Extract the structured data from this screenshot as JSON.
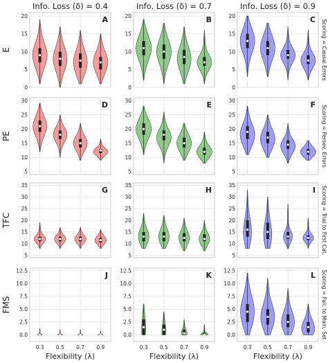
{
  "chart_data": {
    "type": "violin",
    "column_titles": [
      "Info. Loss (δ) = 0.4",
      "Info. Loss (δ) = 0.7",
      "Info. Loss (δ) = 0.9"
    ],
    "row_labels": [
      "E",
      "PE",
      "TFC",
      "FMS"
    ],
    "row_side_titles": [
      "Scoring = Causal Errors",
      "Scoring = Persev. Errors",
      "Scoring = Trial to First Cat.",
      "Scoring = Fail. to Main. Set"
    ],
    "xlabel": "Flexibility (λ)",
    "x_categories": [
      "0.3",
      "0.5",
      "0.7",
      "0.9"
    ],
    "colors": [
      "#f08c8c",
      "#7fbf7b",
      "#8c8cf0"
    ],
    "panel_letters": [
      [
        "A",
        "B",
        "C"
      ],
      [
        "D",
        "E",
        "F"
      ],
      [
        "G",
        "H",
        "I"
      ],
      [
        "J",
        "K",
        "L"
      ]
    ],
    "y_axes": [
      {
        "ylim": [
          0,
          21
        ],
        "ticks": [
          "0",
          "5",
          "10",
          "15",
          "20"
        ]
      },
      {
        "ylim": [
          4,
          31
        ],
        "ticks": [
          "5",
          "10",
          "15",
          "20",
          "25",
          "30"
        ]
      },
      {
        "ylim": [
          4,
          36
        ],
        "ticks": [
          "5",
          "10",
          "15",
          "20",
          "25",
          "30",
          "35"
        ]
      },
      {
        "ylim": [
          -1.3,
          13
        ],
        "ticks": [
          "0.0",
          "2.5",
          "5.0",
          "7.5",
          "10.0",
          "12.5"
        ]
      }
    ],
    "panels": [
      [
        [
          {
            "min": 1,
            "q1": 7,
            "median": 9,
            "q3": 11,
            "max": 19,
            "mode": 9,
            "width": 0.36
          },
          {
            "min": 0,
            "q1": 6,
            "median": 8,
            "q3": 10,
            "max": 17,
            "mode": 8,
            "width": 0.34
          },
          {
            "min": 1,
            "q1": 5.5,
            "median": 7.5,
            "q3": 9.5,
            "max": 16,
            "mode": 7,
            "width": 0.34
          },
          {
            "min": 1,
            "q1": 5,
            "median": 7,
            "q3": 8.5,
            "max": 15,
            "mode": 7,
            "width": 0.36
          }
        ],
        [
          {
            "min": 2,
            "q1": 9,
            "median": 11,
            "q3": 13,
            "max": 19,
            "mode": 11,
            "width": 0.38
          },
          {
            "min": 1,
            "q1": 8,
            "median": 10,
            "q3": 12,
            "max": 18,
            "mode": 10,
            "width": 0.36
          },
          {
            "min": 1,
            "q1": 6.5,
            "median": 8.5,
            "q3": 10.5,
            "max": 17,
            "mode": 8,
            "width": 0.34
          },
          {
            "min": 1,
            "q1": 6,
            "median": 7,
            "q3": 8.5,
            "max": 16,
            "mode": 7,
            "width": 0.36
          }
        ],
        [
          {
            "min": 3,
            "q1": 11,
            "median": 13,
            "q3": 15,
            "max": 20,
            "mode": 13,
            "width": 0.36
          },
          {
            "min": 3,
            "q1": 9,
            "median": 11,
            "q3": 13,
            "max": 18,
            "mode": 11,
            "width": 0.36
          },
          {
            "min": 2,
            "q1": 8,
            "median": 9,
            "q3": 10.5,
            "max": 17,
            "mode": 9,
            "width": 0.36
          },
          {
            "min": 2,
            "q1": 6.5,
            "median": 7.5,
            "q3": 9,
            "max": 16,
            "mode": 7.5,
            "width": 0.36
          }
        ]
      ],
      [
        [
          {
            "min": 12,
            "q1": 19,
            "median": 21,
            "q3": 23,
            "max": 29,
            "mode": 21,
            "width": 0.34
          },
          {
            "min": 10,
            "q1": 16.5,
            "median": 18,
            "q3": 19.5,
            "max": 25,
            "mode": 18,
            "width": 0.34
          },
          {
            "min": 9,
            "q1": 13.5,
            "median": 15,
            "q3": 16.5,
            "max": 22,
            "mode": 15,
            "width": 0.34
          },
          {
            "min": 9,
            "q1": 11.5,
            "median": 12.5,
            "q3": 13,
            "max": 16.5,
            "mode": 12,
            "width": 0.36
          }
        ],
        [
          {
            "min": 11,
            "q1": 18,
            "median": 20,
            "q3": 22,
            "max": 28,
            "mode": 20,
            "width": 0.38
          },
          {
            "min": 8,
            "q1": 16,
            "median": 18,
            "q3": 19.5,
            "max": 26,
            "mode": 17,
            "width": 0.36
          },
          {
            "min": 9,
            "q1": 13.5,
            "median": 15,
            "q3": 17,
            "max": 22,
            "mode": 15,
            "width": 0.36
          },
          {
            "min": 8,
            "q1": 11,
            "median": 12,
            "q3": 13.5,
            "max": 19,
            "mode": 12,
            "width": 0.38
          }
        ],
        [
          {
            "min": 11,
            "q1": 16.5,
            "median": 19,
            "q3": 21,
            "max": 28,
            "mode": 18,
            "width": 0.36
          },
          {
            "min": 10,
            "q1": 15,
            "median": 17,
            "q3": 19,
            "max": 25,
            "mode": 16.5,
            "width": 0.36
          },
          {
            "min": 8,
            "q1": 13,
            "median": 14.5,
            "q3": 16,
            "max": 22,
            "mode": 14,
            "width": 0.36
          },
          {
            "min": 9,
            "q1": 11,
            "median": 12,
            "q3": 13,
            "max": 16,
            "mode": 12,
            "width": 0.38
          }
        ]
      ],
      [
        [
          {
            "min": 8,
            "q1": 11,
            "median": 12,
            "q3": 13,
            "max": 19,
            "mode": 12,
            "width": 0.28
          },
          {
            "min": 8,
            "q1": 11,
            "median": 12,
            "q3": 13,
            "max": 17,
            "mode": 12,
            "width": 0.28
          },
          {
            "min": 8,
            "q1": 11,
            "median": 12,
            "q3": 13,
            "max": 17,
            "mode": 12,
            "width": 0.28
          },
          {
            "min": 8,
            "q1": 10.5,
            "median": 11.5,
            "q3": 12.5,
            "max": 16,
            "mode": 11.5,
            "width": 0.28
          }
        ],
        [
          {
            "min": 8,
            "q1": 11,
            "median": 13,
            "q3": 15,
            "max": 23,
            "mode": 13,
            "width": 0.26
          },
          {
            "min": 8,
            "q1": 11,
            "median": 13,
            "q3": 15,
            "max": 22,
            "mode": 13,
            "width": 0.26
          },
          {
            "min": 7,
            "q1": 11,
            "median": 12.5,
            "q3": 14.5,
            "max": 21,
            "mode": 12.5,
            "width": 0.26
          },
          {
            "min": 7,
            "q1": 11,
            "median": 12,
            "q3": 14,
            "max": 20,
            "mode": 12,
            "width": 0.26
          }
        ],
        [
          {
            "min": 8,
            "q1": 13,
            "median": 16,
            "q3": 20,
            "max": 33,
            "mode": 15,
            "width": 0.2
          },
          {
            "min": 8,
            "q1": 12,
            "median": 15,
            "q3": 19,
            "max": 30,
            "mode": 14,
            "width": 0.2
          },
          {
            "min": 8,
            "q1": 12,
            "median": 13,
            "q3": 15,
            "max": 27,
            "mode": 13,
            "width": 0.22
          },
          {
            "min": 8,
            "q1": 11.5,
            "median": 12.5,
            "q3": 13.5,
            "max": 21,
            "mode": 12.5,
            "width": 0.26
          }
        ]
      ],
      [
        [
          {
            "min": 0,
            "q1": 0,
            "median": 0,
            "q3": 0.05,
            "max": 1.2,
            "mode": 0,
            "width": 0.12
          },
          {
            "min": 0,
            "q1": 0,
            "median": 0,
            "q3": 0.05,
            "max": 1,
            "mode": 0,
            "width": 0.12
          },
          {
            "min": 0,
            "q1": 0,
            "median": 0,
            "q3": 0.05,
            "max": 1,
            "mode": 0,
            "width": 0.12
          },
          {
            "min": 0,
            "q1": 0,
            "median": 0,
            "q3": 0.05,
            "max": 0.8,
            "mode": 0,
            "width": 0.12
          }
        ],
        [
          {
            "min": 0,
            "q1": 0,
            "median": 1.5,
            "q3": 3,
            "max": 6,
            "mode": 1,
            "width": 0.1
          },
          {
            "min": 0,
            "q1": 0,
            "median": 1,
            "q3": 2,
            "max": 4.5,
            "mode": 0.5,
            "width": 0.1
          },
          {
            "min": 0,
            "q1": 0,
            "median": 0.3,
            "q3": 1,
            "max": 3,
            "mode": 0.2,
            "width": 0.14
          },
          {
            "min": 0,
            "q1": 0,
            "median": 0,
            "q3": 0.4,
            "max": 2,
            "mode": 0,
            "width": 0.18
          }
        ],
        [
          {
            "min": 0,
            "q1": 2.5,
            "median": 4.5,
            "q3": 6,
            "max": 12,
            "mode": 4.5,
            "width": 0.34
          },
          {
            "min": 0,
            "q1": 2,
            "median": 3.5,
            "q3": 5,
            "max": 11,
            "mode": 3.5,
            "width": 0.34
          },
          {
            "min": 0,
            "q1": 1.5,
            "median": 2.5,
            "q3": 4,
            "max": 9,
            "mode": 2.5,
            "width": 0.32
          },
          {
            "min": 0,
            "q1": 0.5,
            "median": 1.5,
            "q3": 2.5,
            "max": 6,
            "mode": 1.2,
            "width": 0.32
          }
        ]
      ]
    ]
  }
}
